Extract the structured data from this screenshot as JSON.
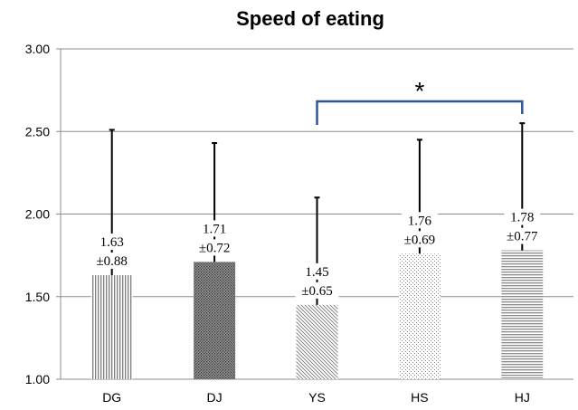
{
  "chart_data": {
    "type": "bar",
    "title": "Speed of eating",
    "xlabel": "",
    "ylabel": "",
    "ylim": [
      1.0,
      3.0
    ],
    "yticks": [
      "1.00",
      "1.50",
      "2.00",
      "2.50",
      "3.00"
    ],
    "grid": true,
    "categories": [
      "DG",
      "DJ",
      "YS",
      "HS",
      "HJ"
    ],
    "values": [
      1.63,
      1.71,
      1.45,
      1.76,
      1.78
    ],
    "errors": [
      0.88,
      0.72,
      0.65,
      0.69,
      0.77
    ],
    "value_labels": [
      "1.63",
      "1.71",
      "1.45",
      "1.76",
      "1.78"
    ],
    "error_labels": [
      "±0.88",
      "±0.72",
      "±0.65",
      "±0.69",
      "±0.77"
    ],
    "patterns": [
      "vertical-lines",
      "dense-dots",
      "diagonal-lines",
      "sparse-dots",
      "horizontal-lines"
    ],
    "significance": {
      "from": "YS",
      "to": "HJ",
      "label": "*",
      "color": "#2e5597"
    }
  }
}
